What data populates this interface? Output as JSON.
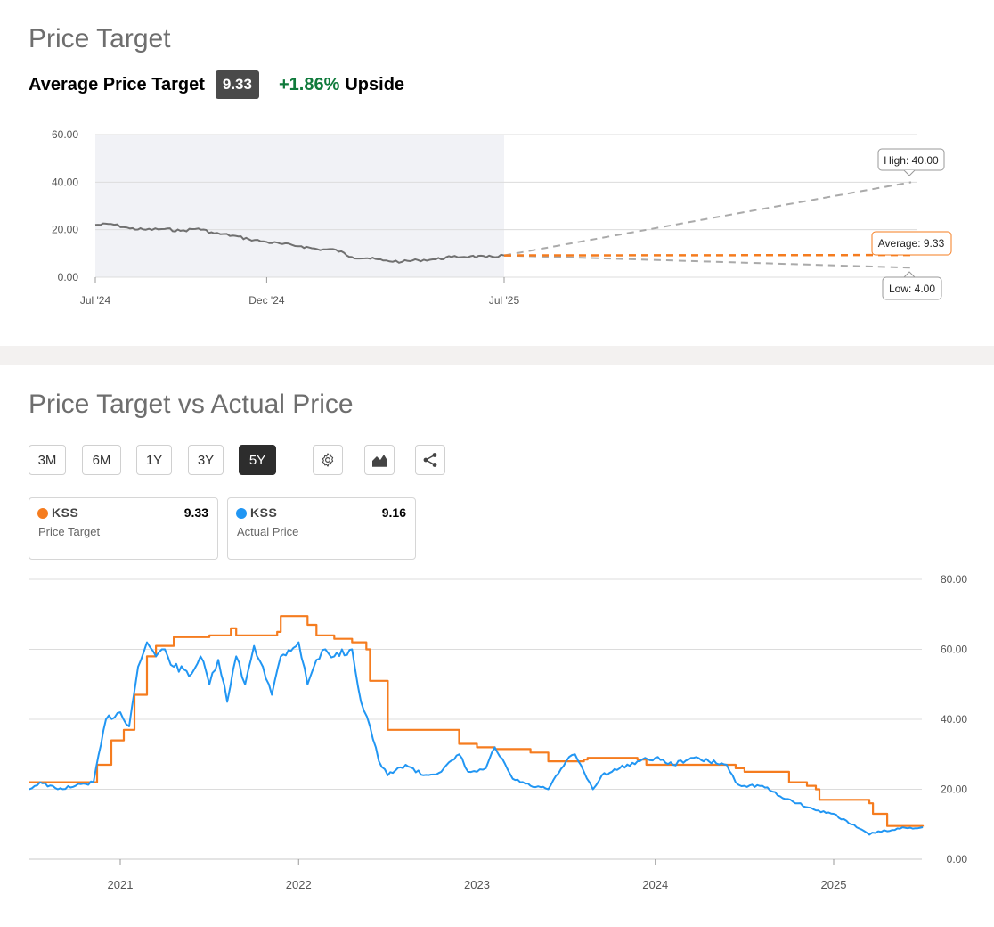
{
  "price_target": {
    "title": "Price Target",
    "avg_label": "Average Price Target",
    "avg_value": "9.33",
    "upside_value": "+1.86%",
    "upside_word": "Upside",
    "callouts": {
      "high": "High: 40.00",
      "average": "Average: 9.33",
      "low": "Low: 4.00"
    }
  },
  "pvp": {
    "title": "Price Target vs Actual Price",
    "ranges": [
      "3M",
      "6M",
      "1Y",
      "3Y",
      "5Y"
    ],
    "active_range": "5Y",
    "tools": [
      "gear-icon",
      "area-chart-icon",
      "share-icon"
    ],
    "legend": [
      {
        "ticker": "KSS",
        "value": "9.33",
        "label": "Price Target",
        "color": "#f57c1f"
      },
      {
        "ticker": "KSS",
        "value": "9.16",
        "label": "Actual Price",
        "color": "#2196f3"
      }
    ]
  },
  "chart_data": [
    {
      "type": "line",
      "title": "Price Target",
      "x_ticks": [
        "Jul '24",
        "Dec '24",
        "Jul '25"
      ],
      "y_ticks": [
        "0.00",
        "20.00",
        "40.00",
        "60.00"
      ],
      "ylim": [
        0,
        60
      ],
      "grid": true,
      "historical_shading": [
        "Jul '24",
        "Jul '25"
      ],
      "series": [
        {
          "color": "#707070",
          "x": [
            "2024-07-01",
            "2024-07-15",
            "2024-08-01",
            "2024-08-15",
            "2024-09-01",
            "2024-09-15",
            "2024-10-01",
            "2024-10-15",
            "2024-11-01",
            "2024-11-15",
            "2024-12-01",
            "2024-12-15",
            "2025-01-01",
            "2025-01-15",
            "2025-02-01",
            "2025-02-15",
            "2025-03-01",
            "2025-03-15",
            "2025-04-01",
            "2025-04-15",
            "2025-05-01",
            "2025-05-15",
            "2025-06-01",
            "2025-06-15",
            "2025-07-01"
          ],
          "y": [
            22.0,
            22.4,
            20.5,
            20.0,
            20.3,
            19.5,
            20.5,
            18.5,
            17.5,
            16.0,
            14.8,
            14.0,
            13.0,
            11.8,
            11.5,
            8.5,
            8.0,
            7.0,
            6.5,
            7.2,
            7.5,
            8.5,
            8.8,
            8.4,
            9.16
          ]
        }
      ],
      "projections": {
        "high": 40.0,
        "average": 9.33,
        "low": 4.0,
        "from": 9.16
      }
    },
    {
      "type": "line",
      "title": "Price Target vs Actual Price",
      "x_ticks": [
        "2021",
        "2022",
        "2023",
        "2024",
        "2025"
      ],
      "y_ticks": [
        "0.00",
        "20.00",
        "40.00",
        "60.00",
        "80.00"
      ],
      "ylim": [
        0,
        80
      ],
      "grid": true,
      "series": [
        {
          "name": "Price Target",
          "color": "#f57c1f",
          "x": [
            2020.49,
            2020.85,
            2020.87,
            2020.95,
            2021.02,
            2021.08,
            2021.15,
            2021.2,
            2021.3,
            2021.35,
            2021.5,
            2021.62,
            2021.65,
            2021.75,
            2021.88,
            2021.9,
            2022.0,
            2022.05,
            2022.1,
            2022.2,
            2022.3,
            2022.38,
            2022.4,
            2022.48,
            2022.5,
            2022.9,
            2023.0,
            2023.1,
            2023.3,
            2023.4,
            2023.6,
            2023.62,
            2023.9,
            2023.95,
            2024.2,
            2024.3,
            2024.45,
            2024.5,
            2024.75,
            2024.85,
            2024.9,
            2024.92,
            2025.2,
            2025.22,
            2025.3,
            2025.5
          ],
          "y": [
            22.0,
            22.0,
            27.0,
            34.0,
            37.0,
            47.0,
            58.0,
            61.0,
            63.5,
            63.5,
            64.0,
            66.0,
            64.0,
            64.0,
            65.0,
            69.5,
            69.5,
            67.0,
            64.0,
            63.0,
            62.0,
            60.0,
            51.0,
            51.0,
            37.0,
            33.0,
            32.0,
            31.5,
            30.5,
            28.0,
            28.5,
            29.0,
            28.5,
            27.0,
            27.0,
            27.0,
            26.0,
            25.0,
            22.0,
            21.0,
            20.0,
            17.0,
            16.0,
            13.0,
            9.5,
            9.33
          ]
        },
        {
          "name": "Actual Price",
          "color": "#2196f3",
          "x": [
            2020.49,
            2020.55,
            2020.65,
            2020.75,
            2020.85,
            2020.92,
            2021.0,
            2021.05,
            2021.1,
            2021.15,
            2021.2,
            2021.25,
            2021.3,
            2021.4,
            2021.45,
            2021.5,
            2021.55,
            2021.6,
            2021.65,
            2021.7,
            2021.75,
            2021.8,
            2021.85,
            2021.9,
            2022.0,
            2022.05,
            2022.1,
            2022.15,
            2022.2,
            2022.3,
            2022.35,
            2022.4,
            2022.45,
            2022.5,
            2022.6,
            2022.7,
            2022.8,
            2022.9,
            2022.95,
            2023.0,
            2023.05,
            2023.1,
            2023.2,
            2023.3,
            2023.4,
            2023.5,
            2023.55,
            2023.6,
            2023.65,
            2023.7,
            2023.8,
            2023.9,
            2024.0,
            2024.1,
            2024.2,
            2024.3,
            2024.4,
            2024.45,
            2024.5,
            2024.6,
            2024.7,
            2024.8,
            2024.9,
            2025.0,
            2025.1,
            2025.2,
            2025.25,
            2025.3,
            2025.4,
            2025.5
          ],
          "y": [
            20.0,
            22.0,
            20.0,
            21.0,
            22.0,
            40.0,
            42.0,
            38.0,
            55.0,
            62.0,
            58.0,
            60.0,
            55.0,
            53.0,
            58.0,
            50.0,
            57.0,
            45.0,
            58.0,
            50.0,
            61.0,
            55.0,
            47.0,
            58.0,
            62.0,
            50.0,
            57.0,
            60.0,
            58.0,
            60.0,
            45.0,
            38.0,
            28.0,
            24.0,
            27.0,
            24.0,
            25.0,
            30.0,
            25.0,
            25.0,
            26.0,
            32.0,
            23.0,
            21.0,
            20.0,
            28.0,
            30.0,
            25.0,
            20.0,
            24.0,
            26.0,
            28.0,
            29.0,
            27.0,
            29.0,
            28.0,
            27.0,
            22.0,
            21.0,
            21.0,
            18.0,
            16.0,
            14.0,
            13.0,
            10.0,
            7.0,
            8.0,
            8.0,
            9.0,
            9.16
          ]
        }
      ]
    }
  ]
}
